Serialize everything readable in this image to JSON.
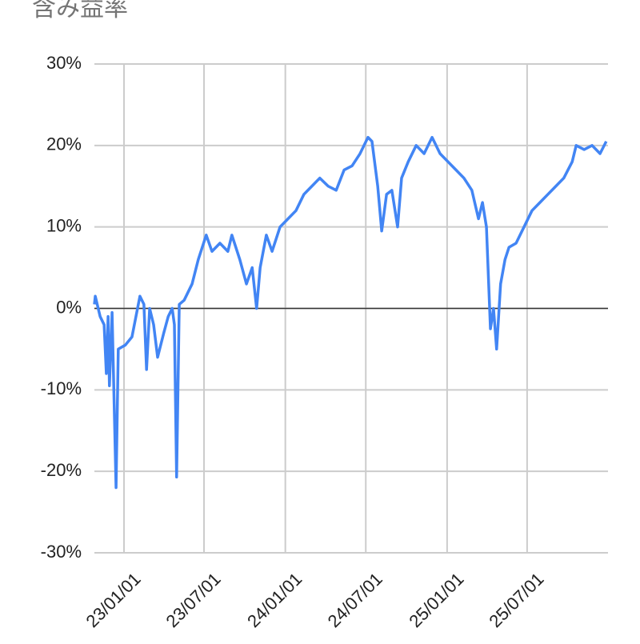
{
  "chart_data": {
    "type": "line",
    "title": "含み益率",
    "x": [
      "22/10/26",
      "22/10/28",
      "22/11/08",
      "22/11/17",
      "22/11/22",
      "22/11/26",
      "22/11/29",
      "22/12/05",
      "22/12/14",
      "22/12/19",
      "23/01/04",
      "23/01/19",
      "23/01/28",
      "23/02/06",
      "23/02/15",
      "23/02/21",
      "23/02/28",
      "23/03/09",
      "23/03/18",
      "23/04/01",
      "23/04/11",
      "23/04/20",
      "23/04/25",
      "23/04/30",
      "23/05/06",
      "23/05/17",
      "23/06/04",
      "23/06/18",
      "23/07/06",
      "23/07/19",
      "23/08/06",
      "23/08/24",
      "23/09/02",
      "23/09/20",
      "23/10/05",
      "23/10/18",
      "23/10/28",
      "23/11/05",
      "23/11/19",
      "23/12/02",
      "23/12/20",
      "24/01/07",
      "24/01/25",
      "24/02/12",
      "24/03/01",
      "24/03/19",
      "24/04/07",
      "24/04/25",
      "24/05/13",
      "24/05/31",
      "24/06/18",
      "24/07/06",
      "24/07/15",
      "24/07/28",
      "24/08/06",
      "24/08/17",
      "24/08/29",
      "24/09/11",
      "24/09/20",
      "24/10/05",
      "24/10/23",
      "24/11/10",
      "24/11/28",
      "24/12/16",
      "25/01/03",
      "25/01/21",
      "25/02/08",
      "25/02/26",
      "25/03/13",
      "25/03/22",
      "25/03/31",
      "25/04/09",
      "25/04/16",
      "25/04/23",
      "25/05/02",
      "25/05/12",
      "25/05/21",
      "25/06/06",
      "25/06/24",
      "25/07/12",
      "25/07/30",
      "25/08/17",
      "25/09/04",
      "25/09/22",
      "25/10/11",
      "25/10/20",
      "25/11/07",
      "25/11/25",
      "25/12/13",
      "25/12/27"
    ],
    "series": [
      {
        "color": "#4285f4",
        "values": [
          0.5,
          1.5,
          -1,
          -2,
          -8,
          -1,
          -9.5,
          -0.5,
          -22,
          -5,
          -4.5,
          -3.5,
          -1,
          1.5,
          0.5,
          -7.5,
          0,
          -2,
          -6,
          -3,
          -1,
          0,
          -2,
          -20.7,
          0.5,
          1,
          3,
          6,
          9,
          7,
          8,
          7,
          9,
          6,
          3,
          5,
          0,
          5,
          9,
          7,
          10,
          11,
          12,
          14,
          15,
          16,
          15,
          14.5,
          17,
          17.5,
          19,
          21,
          20.5,
          15,
          9.5,
          14,
          14.5,
          10,
          16,
          18,
          20,
          19,
          21,
          19,
          18,
          17,
          16,
          14.5,
          11,
          13,
          10,
          -2.5,
          0,
          -5,
          3,
          6,
          7.5,
          8,
          10,
          12,
          13,
          14,
          15,
          16,
          18,
          20,
          19.5,
          20,
          19,
          20.5
        ]
      }
    ],
    "xlim": [
      "22/10/26",
      "25/12/31"
    ],
    "xticks": [
      "23/01/01",
      "23/07/01",
      "24/01/01",
      "24/07/01",
      "25/01/01",
      "25/07/01"
    ],
    "ylim": [
      -30,
      30
    ],
    "yticks": [
      {
        "value": -30,
        "label": "-30%"
      },
      {
        "value": -20,
        "label": "-20%"
      },
      {
        "value": -10,
        "label": "-10%"
      },
      {
        "value": 0,
        "label": "0%"
      },
      {
        "value": 10,
        "label": "10%"
      },
      {
        "value": 20,
        "label": "20%"
      },
      {
        "value": 30,
        "label": "30%"
      }
    ],
    "grid": true
  }
}
